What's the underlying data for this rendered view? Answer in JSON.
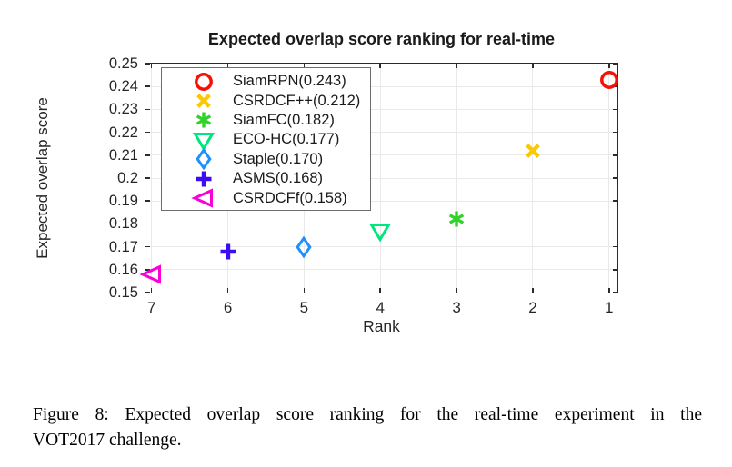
{
  "figure": {
    "caption_line1": "Figure 8: Expected overlap score ranking for the real-time experiment in the",
    "caption_line2": "VOT2017 challenge."
  },
  "chart_data": {
    "type": "scatter",
    "title": "Expected overlap score ranking for real-time",
    "xlabel": "Rank",
    "ylabel": "Expected overlap score",
    "x_axis_reversed": true,
    "xlim": [
      7.08,
      0.89
    ],
    "ylim": [
      0.15,
      0.25
    ],
    "x_ticks": [
      {
        "value": 7,
        "label": "7"
      },
      {
        "value": 6,
        "label": "6"
      },
      {
        "value": 5,
        "label": "5"
      },
      {
        "value": 4,
        "label": "4"
      },
      {
        "value": 3,
        "label": "3"
      },
      {
        "value": 2,
        "label": "2"
      },
      {
        "value": 1,
        "label": "1"
      }
    ],
    "y_ticks": [
      {
        "value": 0.15,
        "label": "0.15"
      },
      {
        "value": 0.16,
        "label": "0.16"
      },
      {
        "value": 0.17,
        "label": "0.17"
      },
      {
        "value": 0.18,
        "label": "0.18"
      },
      {
        "value": 0.19,
        "label": "0.19"
      },
      {
        "value": 0.2,
        "label": "0.2"
      },
      {
        "value": 0.21,
        "label": "0.21"
      },
      {
        "value": 0.22,
        "label": "0.22"
      },
      {
        "value": 0.23,
        "label": "0.23"
      },
      {
        "value": 0.24,
        "label": "0.24"
      },
      {
        "value": 0.25,
        "label": "0.25"
      }
    ],
    "grid": true,
    "legend_position": "top-left",
    "series": [
      {
        "name": "SiamRPN",
        "legend_label": "SiamRPN(0.243)",
        "rank": 1,
        "score": 0.243,
        "marker": "circle",
        "color": "#f51105"
      },
      {
        "name": "CSRDCF++",
        "legend_label": "CSRDCF++(0.212)",
        "rank": 2,
        "score": 0.212,
        "marker": "x",
        "color": "#fcc803"
      },
      {
        "name": "SiamFC",
        "legend_label": "SiamFC(0.182)",
        "rank": 3,
        "score": 0.182,
        "marker": "asterisk",
        "color": "#33d12b"
      },
      {
        "name": "ECO-HC",
        "legend_label": "ECO-HC(0.177)",
        "rank": 4,
        "score": 0.177,
        "marker": "triangle-down",
        "color": "#00e67e"
      },
      {
        "name": "Staple",
        "legend_label": "Staple(0.170)",
        "rank": 5,
        "score": 0.17,
        "marker": "diamond",
        "color": "#1e90ff"
      },
      {
        "name": "ASMS",
        "legend_label": "ASMS(0.168)",
        "rank": 6,
        "score": 0.168,
        "marker": "plus",
        "color": "#3e0cf2"
      },
      {
        "name": "CSRDCFf",
        "legend_label": "CSRDCFf(0.158)",
        "rank": 7,
        "score": 0.158,
        "marker": "triangle-left",
        "color": "#fa00d7"
      }
    ]
  }
}
